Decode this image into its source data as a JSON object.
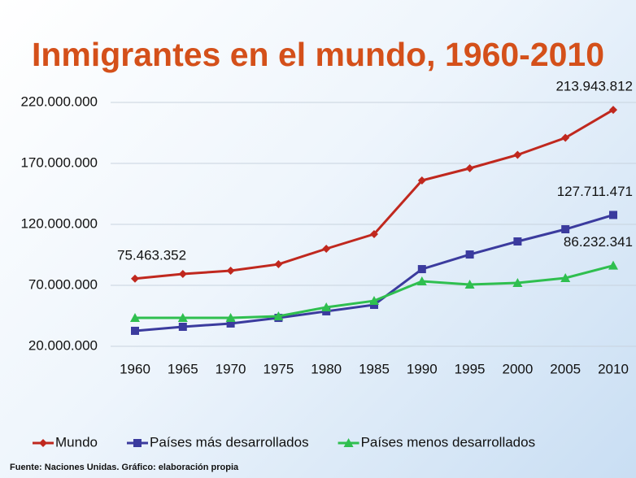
{
  "chart_data": {
    "type": "line",
    "title": "Inmigrantes en el mundo, 1960-2010",
    "source": "Fuente: Naciones Unidas. Gráfico: elaboración propia",
    "categories": [
      "1960",
      "1965",
      "1970",
      "1975",
      "1980",
      "1985",
      "1990",
      "1995",
      "2000",
      "2005",
      "2010"
    ],
    "series": [
      {
        "name": "Mundo",
        "color": "#c0281e",
        "marker": "diamond",
        "values": [
          75463352,
          79300000,
          82000000,
          87300000,
          100000000,
          112000000,
          156000000,
          166000000,
          177000000,
          191000000,
          213943812
        ],
        "value_labels": [
          "75.463.352",
          null,
          null,
          null,
          null,
          null,
          null,
          null,
          null,
          null,
          "213.943.812"
        ]
      },
      {
        "name": "Países más desarrollados",
        "color": "#3b3b9e",
        "marker": "square",
        "values": [
          32700000,
          36000000,
          38700000,
          43300000,
          48700000,
          54000000,
          83300000,
          95300000,
          106000000,
          116000000,
          127711471
        ],
        "value_labels": [
          null,
          null,
          null,
          null,
          null,
          null,
          null,
          null,
          null,
          null,
          "127.711.471"
        ]
      },
      {
        "name": "Países menos desarrollados",
        "color": "#2fbf4f",
        "marker": "triangle",
        "values": [
          43300000,
          43300000,
          43300000,
          44700000,
          52000000,
          57300000,
          73300000,
          70700000,
          72000000,
          76000000,
          86232341
        ],
        "value_labels": [
          null,
          null,
          null,
          null,
          null,
          null,
          null,
          null,
          null,
          null,
          "86.232.341"
        ]
      }
    ],
    "ylim": [
      20000000,
      220000000
    ],
    "yticks": [
      {
        "value": 20000000,
        "label": "20.000.000"
      },
      {
        "value": 70000000,
        "label": "70.000.000"
      },
      {
        "value": 120000000,
        "label": "120.000.000"
      },
      {
        "value": 170000000,
        "label": "170.000.000"
      },
      {
        "value": 220000000,
        "label": "220.000.000"
      }
    ],
    "grid": true,
    "legend": "bottom"
  }
}
